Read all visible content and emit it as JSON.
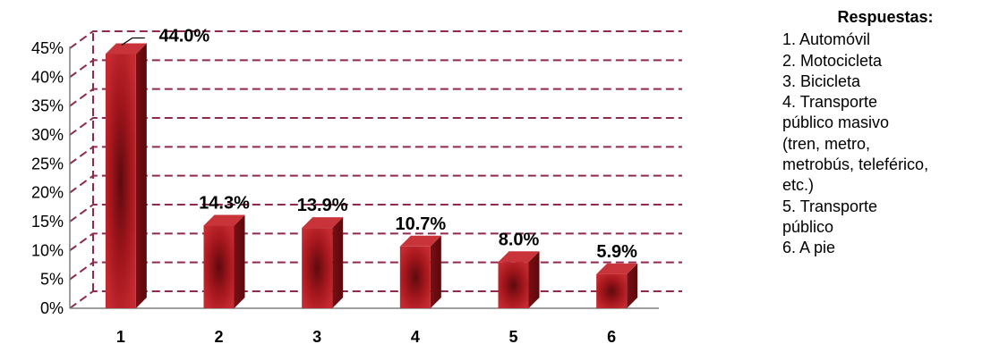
{
  "chart_data": {
    "type": "bar",
    "categories": [
      "1",
      "2",
      "3",
      "4",
      "5",
      "6"
    ],
    "values": [
      44.0,
      14.3,
      13.9,
      10.7,
      8.0,
      5.9
    ],
    "value_labels": [
      "44.0%",
      "14.3%",
      "13.9%",
      "10.7%",
      "8.0%",
      "5.9%"
    ],
    "ylim": [
      0,
      45
    ],
    "yticks": [
      0,
      5,
      10,
      15,
      20,
      25,
      30,
      35,
      40,
      45
    ],
    "ytick_labels": [
      "0%",
      "5%",
      "10%",
      "15%",
      "20%",
      "25%",
      "30%",
      "35%",
      "40%",
      "45%"
    ],
    "grid": true,
    "legend_placement": "right",
    "bar_color": "#b01c22",
    "grid_color": "#8e2a4e"
  },
  "legend": {
    "title": "Respuestas:",
    "items": [
      "1. Automóvil",
      "2. Motocicleta",
      "3. Bicicleta",
      "4. Transporte\npúblico  masivo\n(tren, metro,\nmetrobús, teleférico,\netc.)",
      "5. Transporte\npúblico",
      "6. A pie"
    ]
  }
}
